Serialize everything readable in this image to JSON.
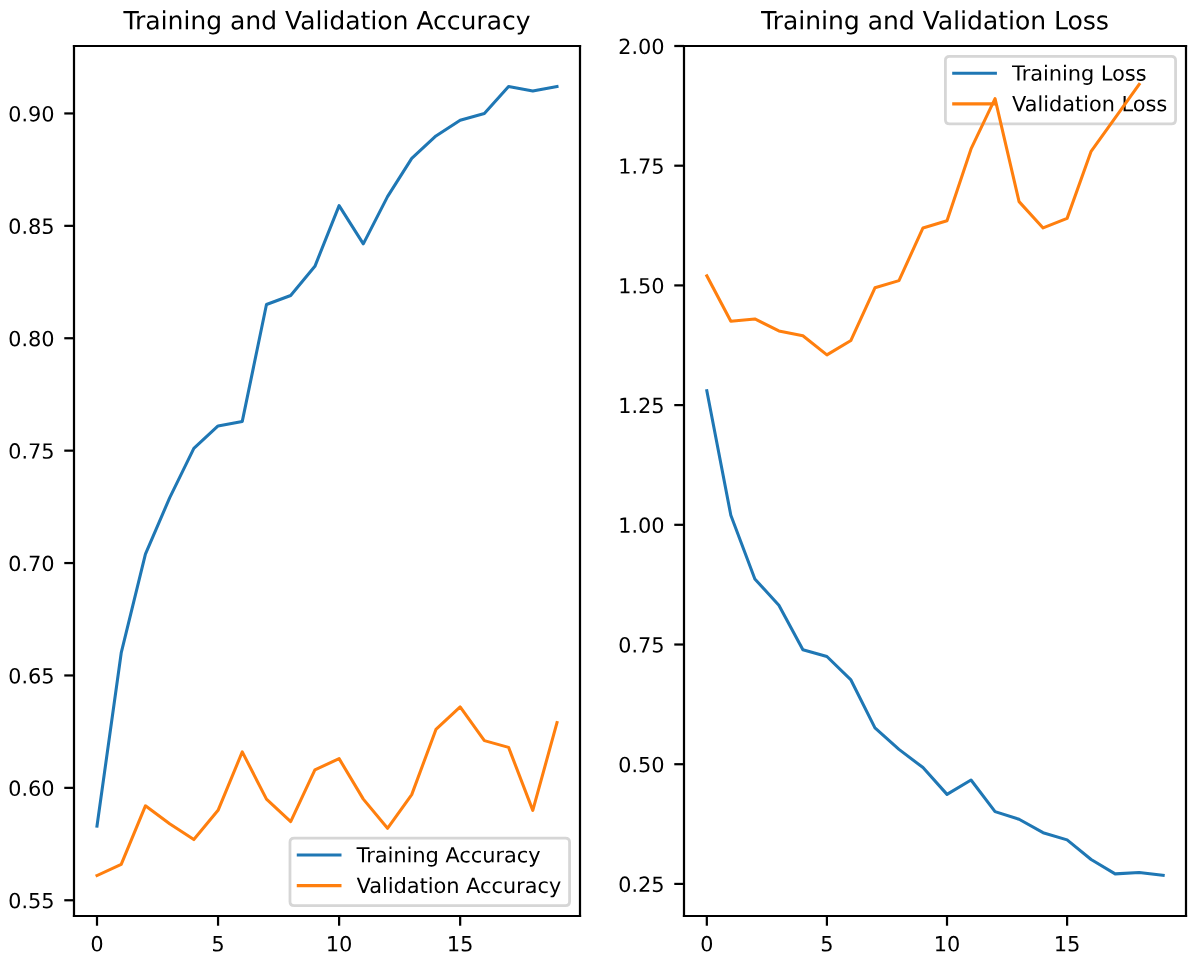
{
  "chart_data": [
    {
      "type": "line",
      "title": "Training and Validation Accuracy",
      "x": [
        0,
        1,
        2,
        3,
        4,
        5,
        6,
        7,
        8,
        9,
        10,
        11,
        12,
        13,
        14,
        15,
        16,
        17,
        18,
        19
      ],
      "series": [
        {
          "name": "Training Accuracy",
          "color": "#1f77b4",
          "values": [
            0.583,
            0.66,
            0.704,
            0.729,
            0.751,
            0.761,
            0.763,
            0.815,
            0.819,
            0.832,
            0.859,
            0.842,
            0.863,
            0.88,
            0.89,
            0.897,
            0.9,
            0.912,
            0.91,
            0.912
          ]
        },
        {
          "name": "Validation Accuracy",
          "color": "#ff7f0e",
          "values": [
            0.561,
            0.566,
            0.592,
            0.584,
            0.577,
            0.59,
            0.616,
            0.595,
            0.585,
            0.608,
            0.613,
            0.595,
            0.582,
            0.597,
            0.626,
            0.636,
            0.621,
            0.618,
            0.59,
            0.629
          ]
        }
      ],
      "xlim": [
        -0.95,
        19.95
      ],
      "xticks": [
        0,
        5,
        10,
        15
      ],
      "ylim": [
        0.543,
        0.93
      ],
      "yticks": [
        {
          "value": 0.55,
          "label": "0.55"
        },
        {
          "value": 0.6,
          "label": "0.60"
        },
        {
          "value": 0.65,
          "label": "0.65"
        },
        {
          "value": 0.7,
          "label": "0.70"
        },
        {
          "value": 0.75,
          "label": "0.75"
        },
        {
          "value": 0.8,
          "label": "0.80"
        },
        {
          "value": 0.85,
          "label": "0.85"
        },
        {
          "value": 0.9,
          "label": "0.90"
        }
      ],
      "legend": "bottom right",
      "grid": false
    },
    {
      "type": "line",
      "title": "Training and Validation Loss",
      "x": [
        0,
        1,
        2,
        3,
        4,
        5,
        6,
        7,
        8,
        9,
        10,
        11,
        12,
        13,
        14,
        15,
        16,
        17,
        18,
        19
      ],
      "series": [
        {
          "name": "Training Loss",
          "color": "#1f77b4",
          "values": [
            1.28,
            1.02,
            0.887,
            0.832,
            0.739,
            0.725,
            0.676,
            0.576,
            0.531,
            0.493,
            0.437,
            0.467,
            0.401,
            0.385,
            0.357,
            0.342,
            0.301,
            0.271,
            0.274,
            0.268
          ]
        },
        {
          "name": "Validation Loss",
          "color": "#ff7f0e",
          "values": [
            1.52,
            1.425,
            1.43,
            1.405,
            1.395,
            1.355,
            1.385,
            1.495,
            1.51,
            1.62,
            1.635,
            1.785,
            1.89,
            1.675,
            1.62,
            1.64,
            1.78,
            1.85,
            1.92,
            null
          ]
        }
      ],
      "xlim": [
        -0.95,
        19.95
      ],
      "xticks": [
        0,
        5,
        10,
        15
      ],
      "ylim": [
        0.183,
        2.0
      ],
      "yticks": [
        {
          "value": 0.25,
          "label": "0.25"
        },
        {
          "value": 0.5,
          "label": "0.50"
        },
        {
          "value": 0.75,
          "label": "0.75"
        },
        {
          "value": 1.0,
          "label": "1.00"
        },
        {
          "value": 1.25,
          "label": "1.25"
        },
        {
          "value": 1.5,
          "label": "1.50"
        },
        {
          "value": 1.75,
          "label": "1.75"
        },
        {
          "value": 2.0,
          "label": "2.00"
        }
      ],
      "legend": "top right",
      "grid": false
    }
  ]
}
